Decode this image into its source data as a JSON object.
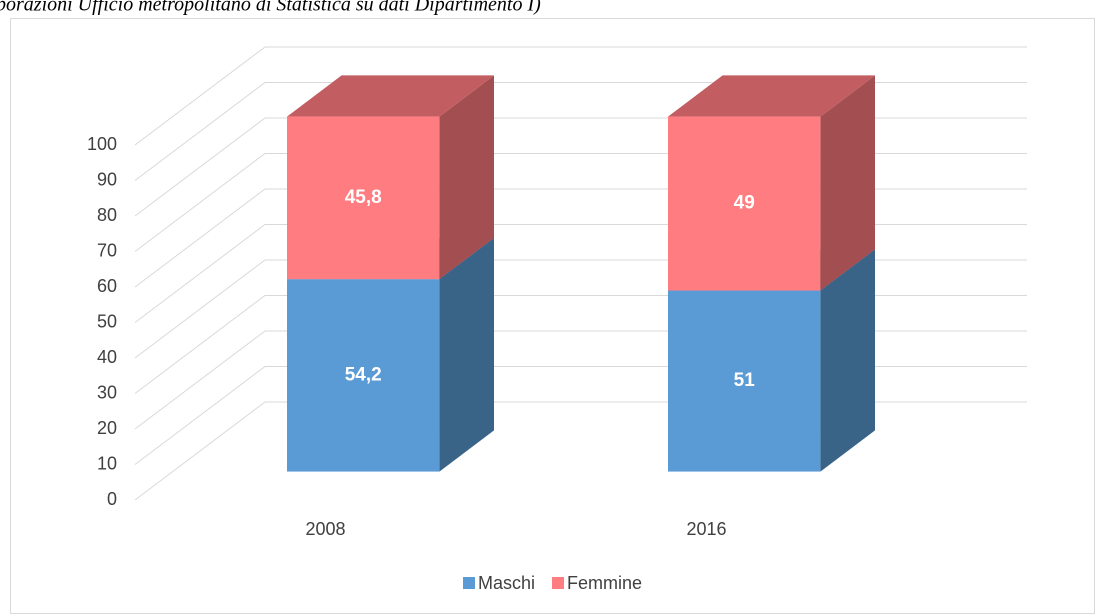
{
  "chart_data": {
    "type": "bar3d_stacked",
    "title": "borazioni Ufficio metropolitano di Statistica su dati Dipartimento I)",
    "categories": [
      "2008",
      "2016"
    ],
    "series": [
      {
        "name": "Maschi",
        "color": "#5b9bd5",
        "values": [
          54.2,
          51
        ],
        "value_labels": [
          "54,2",
          "51"
        ]
      },
      {
        "name": "Femmine",
        "color": "#ff7c80",
        "values": [
          45.8,
          49
        ],
        "value_labels": [
          "45,8",
          "49"
        ]
      }
    ],
    "ylim": [
      0,
      100
    ],
    "yticks": [
      0,
      10,
      20,
      30,
      40,
      50,
      60,
      70,
      80,
      90,
      100
    ],
    "grid": true,
    "legend": "bottom"
  }
}
